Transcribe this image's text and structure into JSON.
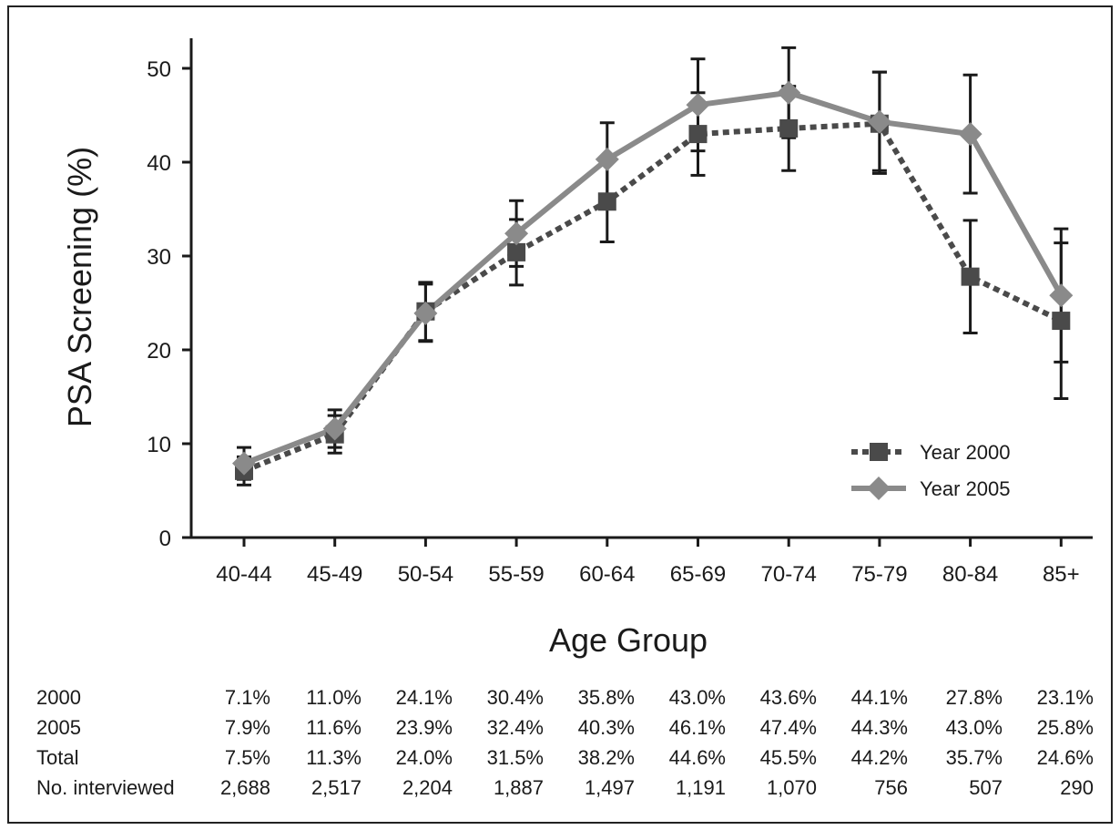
{
  "chart_data": {
    "type": "line",
    "xlabel": "Age Group",
    "ylabel": "PSA Screening (%)",
    "ylim": [
      0,
      52
    ],
    "yticks": [
      0,
      10,
      20,
      30,
      40,
      50
    ],
    "categories": [
      "40-44",
      "45-49",
      "50-54",
      "55-59",
      "60-64",
      "65-69",
      "70-74",
      "75-79",
      "80-84",
      "85+"
    ],
    "grid": false,
    "legend_position": "bottom-right",
    "series": [
      {
        "name": "Year 2000",
        "style": "dotted",
        "marker": "square",
        "color": "#4a4a4a",
        "values": [
          7.1,
          11.0,
          24.1,
          30.4,
          35.8,
          43.0,
          43.6,
          44.1,
          27.8,
          23.1
        ],
        "err_low": [
          5.6,
          9.0,
          21.0,
          26.9,
          31.5,
          38.6,
          39.1,
          38.8,
          21.8,
          14.8
        ],
        "err_high": [
          8.6,
          13.0,
          27.2,
          33.9,
          40.1,
          47.4,
          48.1,
          49.6,
          33.8,
          31.4
        ]
      },
      {
        "name": "Year 2005",
        "style": "solid",
        "marker": "diamond",
        "color": "#8a8a8a",
        "values": [
          7.9,
          11.6,
          23.9,
          32.4,
          40.3,
          46.1,
          47.4,
          44.3,
          43.0,
          25.8
        ],
        "err_low": [
          6.2,
          9.6,
          20.9,
          28.9,
          36.4,
          41.2,
          42.6,
          39.1,
          36.7,
          18.7
        ],
        "err_high": [
          9.6,
          13.6,
          27.0,
          35.9,
          44.2,
          51.0,
          52.2,
          49.6,
          49.3,
          32.9
        ]
      }
    ]
  },
  "table": {
    "rows": [
      {
        "label": "2000",
        "values": [
          "7.1%",
          "11.0%",
          "24.1%",
          "30.4%",
          "35.8%",
          "43.0%",
          "43.6%",
          "44.1%",
          "27.8%",
          "23.1%"
        ]
      },
      {
        "label": "2005",
        "values": [
          "7.9%",
          "11.6%",
          "23.9%",
          "32.4%",
          "40.3%",
          "46.1%",
          "47.4%",
          "44.3%",
          "43.0%",
          "25.8%"
        ]
      },
      {
        "label": "Total",
        "values": [
          "7.5%",
          "11.3%",
          "24.0%",
          "31.5%",
          "38.2%",
          "44.6%",
          "45.5%",
          "44.2%",
          "35.7%",
          "24.6%"
        ]
      },
      {
        "label": "No. interviewed",
        "values": [
          "2,688",
          "2,517",
          "2,204",
          "1,887",
          "1,497",
          "1,191",
          "1,070",
          "756",
          "507",
          "290"
        ]
      }
    ]
  }
}
